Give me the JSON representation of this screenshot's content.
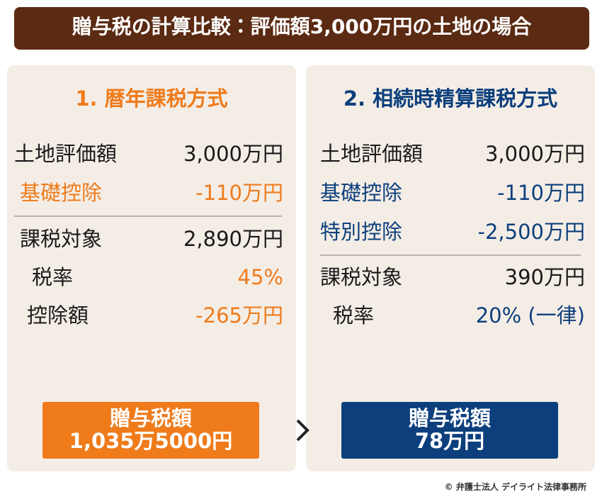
{
  "header": {
    "title": "贈与税の計算比較：評価額3,000万円の土地の場合"
  },
  "panels": [
    {
      "heading": "1. 暦年課税方式",
      "rows": [
        {
          "label": "土地評価額",
          "value": "3,000万円"
        },
        {
          "label": "基礎控除",
          "value": "-110万円"
        },
        {
          "label": "課税対象",
          "value": "2,890万円"
        },
        {
          "label": "税率",
          "value": "45%"
        },
        {
          "label": "控除額",
          "value": "-265万円"
        }
      ],
      "result": {
        "label": "贈与税額",
        "value": "1,035万5000円"
      }
    },
    {
      "heading": "2. 相続時精算課税方式",
      "rows": [
        {
          "label": "土地評価額",
          "value": "3,000万円"
        },
        {
          "label": "基礎控除",
          "value": "-110万円"
        },
        {
          "label": "特別控除",
          "value": "-2,500万円"
        },
        {
          "label": "課税対象",
          "value": "390万円"
        },
        {
          "label": "税率",
          "value": "20% (一律)"
        }
      ],
      "result": {
        "label": "贈与税額",
        "value": "78万円"
      }
    }
  ],
  "footer": {
    "credit": "© 弁護士法人 デイライト法律事務所"
  }
}
